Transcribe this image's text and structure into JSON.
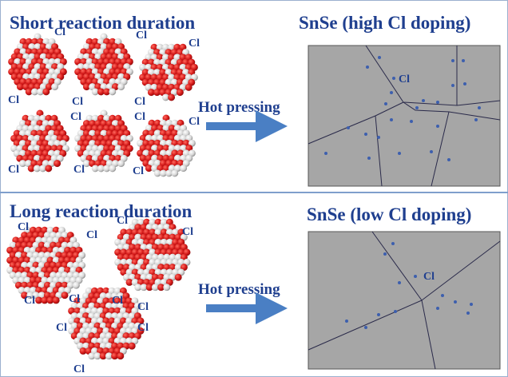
{
  "panels": [
    {
      "title": "Short reaction duration",
      "process": "Hot pressing",
      "product": "SnSe (high Cl doping)",
      "grain_label": "Cl",
      "particle_labels": [
        "Cl",
        "Cl",
        "Cl",
        "Cl",
        "Cl",
        "Cl",
        "Cl",
        "Cl",
        "Cl",
        "Cl",
        "Cl",
        "Cl"
      ]
    },
    {
      "title": "Long reaction duration",
      "process": "Hot pressing",
      "product": "SnSe (low Cl doping)",
      "grain_label": "Cl",
      "particle_labels": [
        "Cl",
        "Cl",
        "Cl",
        "Cl",
        "Cl",
        "Cl",
        "Cl",
        "Cl",
        "Cl",
        "Cl",
        "Cl"
      ]
    }
  ]
}
